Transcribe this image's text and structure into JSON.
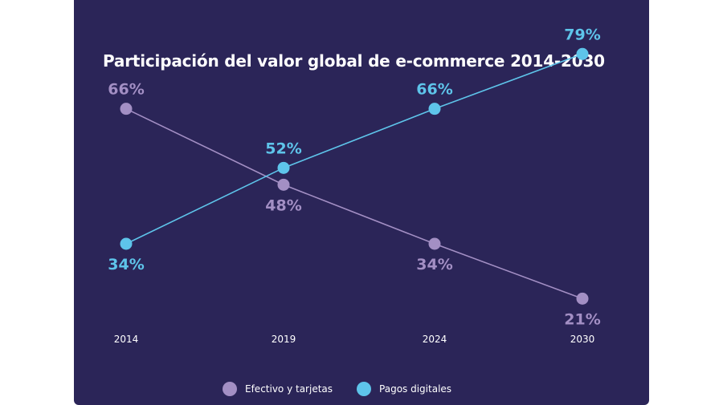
{
  "chart_data": {
    "type": "line",
    "title": "Participación del valor global de e-commerce 2014-2030",
    "categories": [
      "2014",
      "2019",
      "2024",
      "2030"
    ],
    "series": [
      {
        "name": "Efectivo y tarjetas",
        "values": [
          66,
          48,
          34,
          21
        ],
        "labels": [
          "66%",
          "48%",
          "34%",
          "21%"
        ],
        "color": "#a38fc4"
      },
      {
        "name": "Pagos digitales",
        "values": [
          34,
          52,
          66,
          79
        ],
        "labels": [
          "34%",
          "52%",
          "66%",
          "79%"
        ],
        "color": "#5ec4ea"
      }
    ],
    "ylim": [
      0,
      100
    ],
    "grid": false,
    "legend_position": "bottom"
  },
  "colors": {
    "background": "#2b2558",
    "text": "#ffffff"
  }
}
